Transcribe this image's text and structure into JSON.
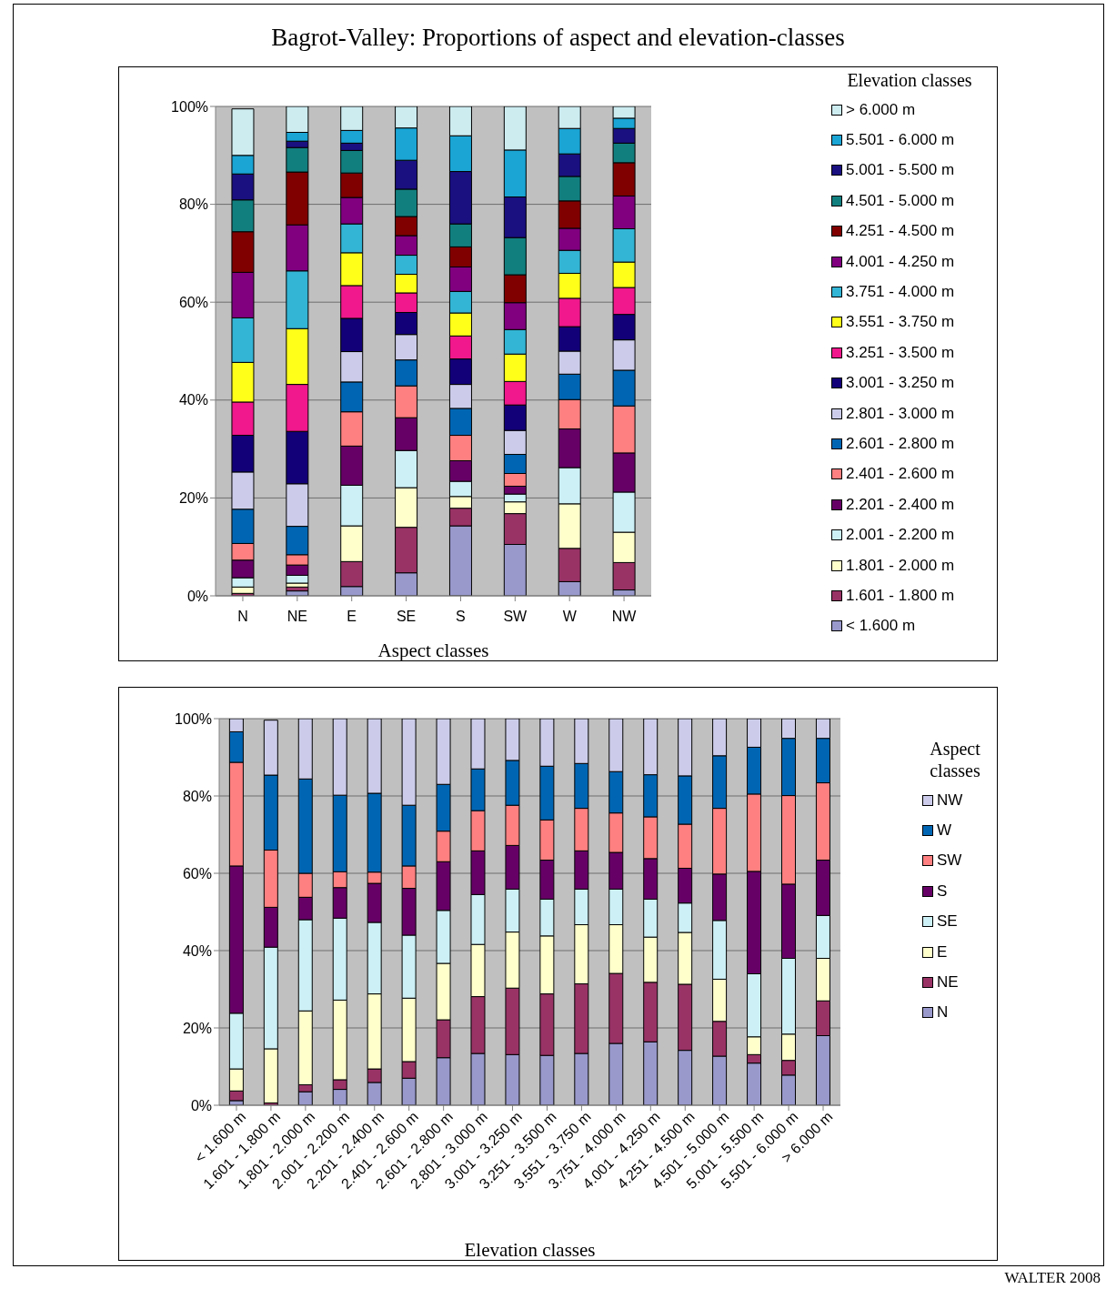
{
  "chart_data": [
    {
      "type": "bar",
      "title": "Bagrot-Valley: Proportions of aspect and elevation-classes",
      "xlabel": "Aspect classes",
      "legend_title": "Elevation classes",
      "categories": [
        "N",
        "NE",
        "E",
        "SE",
        "S",
        "SW",
        "W",
        "NW"
      ],
      "stacked": true,
      "grid": "y",
      "legend": "right",
      "ylim": [
        0,
        100
      ],
      "yticks": [
        {
          "value": 0,
          "label": "0%"
        },
        {
          "value": 20,
          "label": "20%"
        },
        {
          "value": 40,
          "label": "40%"
        },
        {
          "value": 60,
          "label": "60%"
        },
        {
          "value": 80,
          "label": "80%"
        },
        {
          "value": 100,
          "label": "100%"
        }
      ],
      "series": [
        {
          "name": "< 1.600 m",
          "color": "#9999cc",
          "values": [
            null,
            1.0,
            1.9,
            4.7,
            14.3,
            10.5,
            2.9,
            1.2
          ]
        },
        {
          "name": "1.601 - 1.800 m",
          "color": "#993366",
          "values": [
            0.5,
            0.8,
            5.1,
            9.3,
            3.6,
            6.3,
            6.8,
            5.6
          ]
        },
        {
          "name": "1.801 - 2.000 m",
          "color": "#ffffcc",
          "values": [
            1.3,
            0.8,
            7.3,
            8.1,
            2.4,
            2.4,
            9.1,
            6.2
          ]
        },
        {
          "name": "2.001 - 2.200 m",
          "color": "#ccf0f5",
          "values": [
            1.9,
            1.6,
            8.3,
            7.6,
            3.1,
            1.6,
            7.4,
            8.2
          ]
        },
        {
          "name": "2.201 - 2.400 m",
          "color": "#660066",
          "values": [
            3.6,
            2.1,
            8.0,
            6.7,
            4.2,
            1.6,
            7.9,
            8.0
          ]
        },
        {
          "name": "2.401 - 2.600 m",
          "color": "#ff8080",
          "values": [
            3.4,
            2.1,
            7.0,
            6.5,
            5.2,
            2.6,
            6.0,
            9.6
          ]
        },
        {
          "name": "2.601 - 2.800 m",
          "color": "#0066b3",
          "values": [
            7.0,
            5.8,
            6.1,
            5.3,
            5.5,
            3.9,
            5.2,
            7.3
          ]
        },
        {
          "name": "2.801 - 3.000 m",
          "color": "#ccccea",
          "values": [
            7.6,
            8.7,
            6.2,
            5.2,
            4.9,
            4.9,
            4.7,
            6.2
          ]
        },
        {
          "name": "3.001 - 3.250 m",
          "color": "#120078",
          "values": [
            7.5,
            10.7,
            6.8,
            4.5,
            5.2,
            5.2,
            5.0,
            5.2
          ]
        },
        {
          "name": "3.251 - 3.500 m",
          "color": "#f0188c",
          "values": [
            6.8,
            9.6,
            6.7,
            4.0,
            4.7,
            4.8,
            5.8,
            5.5
          ]
        },
        {
          "name": "3.551 - 3.750 m",
          "color": "#ffff1a",
          "values": [
            8.1,
            11.4,
            6.7,
            3.8,
            4.7,
            5.6,
            5.1,
            5.2
          ]
        },
        {
          "name": "3.751 - 4.000 m",
          "color": "#33b5d5",
          "values": [
            9.1,
            11.8,
            5.9,
            3.9,
            4.4,
            5.0,
            4.7,
            6.8
          ]
        },
        {
          "name": "4.001 - 4.250 m",
          "color": "#800080",
          "values": [
            9.3,
            9.4,
            5.4,
            4.0,
            5.0,
            5.5,
            4.5,
            6.7
          ]
        },
        {
          "name": "4.251 - 4.500 m",
          "color": "#800000",
          "values": [
            8.3,
            10.8,
            5.0,
            3.9,
            4.1,
            5.7,
            5.6,
            6.8
          ]
        },
        {
          "name": "4.501 - 5.000 m",
          "color": "#127f7f",
          "values": [
            6.5,
            5.0,
            4.6,
            5.6,
            4.7,
            7.6,
            5.0,
            4.0
          ]
        },
        {
          "name": "5.001 - 5.500 m",
          "color": "#1a1080",
          "values": [
            5.3,
            1.3,
            1.5,
            5.9,
            10.7,
            8.3,
            4.6,
            3.0
          ]
        },
        {
          "name": "5.501 - 6.000 m",
          "color": "#1aa5d5",
          "values": [
            3.8,
            1.8,
            2.6,
            6.6,
            7.3,
            9.6,
            5.2,
            2.1
          ]
        },
        {
          "name": "> 6.000 m",
          "color": "#ccecf0",
          "values": [
            9.5,
            5.3,
            4.9,
            4.4,
            6.0,
            8.9,
            4.5,
            2.4
          ]
        }
      ]
    },
    {
      "type": "bar",
      "xlabel": "Elevation classes",
      "legend_title": "Aspect classes",
      "categories": [
        "< 1.600 m",
        "1.601 - 1.800 m",
        "1.801 - 2.000 m",
        "2.001 - 2.200 m",
        "2.201 - 2.400 m",
        "2.401 - 2.600 m",
        "2.601 - 2.800 m",
        "2.801 - 3.000 m",
        "3.001 - 3.250 m",
        "3.251 - 3.500 m",
        "3.551 - 3.750 m",
        "3.751 - 4.000 m",
        "4.001 - 4.250 m",
        "4.251 - 4.500 m",
        "4.501 - 5.000 m",
        "5.001 - 5.500 m",
        "5.501 - 6.000 m",
        "> 6.000 m"
      ],
      "stacked": true,
      "grid": "y",
      "legend": "right",
      "ylim": [
        0,
        100
      ],
      "yticks": [
        {
          "value": 0,
          "label": "0%"
        },
        {
          "value": 20,
          "label": "20%"
        },
        {
          "value": 40,
          "label": "40%"
        },
        {
          "value": 60,
          "label": "60%"
        },
        {
          "value": 80,
          "label": "80%"
        },
        {
          "value": 100,
          "label": "100%"
        }
      ],
      "annotations": [
        "WALTER 2008"
      ],
      "series": [
        {
          "name": "N",
          "color": "#9999cc",
          "values": [
            1.2,
            null,
            3.5,
            4.1,
            5.9,
            7.0,
            12.3,
            13.4,
            13.1,
            12.9,
            13.4,
            16.0,
            16.4,
            14.2,
            12.7,
            10.9,
            7.8,
            18.0
          ]
        },
        {
          "name": "NE",
          "color": "#993366",
          "values": [
            2.5,
            0.6,
            1.8,
            2.5,
            3.5,
            4.3,
            9.8,
            14.7,
            17.2,
            15.9,
            18.0,
            18.1,
            15.4,
            17.1,
            9.0,
            2.2,
            3.8,
            9.0
          ]
        },
        {
          "name": "E",
          "color": "#ffffcc",
          "values": [
            5.7,
            14.0,
            19.1,
            20.6,
            19.4,
            16.4,
            14.6,
            13.5,
            14.5,
            15.0,
            15.3,
            12.6,
            11.7,
            13.4,
            10.9,
            4.6,
            6.8,
            11.0
          ]
        },
        {
          "name": "SE",
          "color": "#ccf0f5",
          "values": [
            14.4,
            26.3,
            23.6,
            21.2,
            18.5,
            16.3,
            13.7,
            12.9,
            11.1,
            9.5,
            9.2,
            9.2,
            9.8,
            7.6,
            15.2,
            16.3,
            19.6,
            11.1
          ]
        },
        {
          "name": "S",
          "color": "#660066",
          "values": [
            38.1,
            10.3,
            5.8,
            7.9,
            10.1,
            12.1,
            12.6,
            11.3,
            11.3,
            10.1,
            9.9,
            9.5,
            10.5,
            9.0,
            12.0,
            26.5,
            19.2,
            14.3
          ]
        },
        {
          "name": "SW",
          "color": "#ff8080",
          "values": [
            26.8,
            14.8,
            6.2,
            4.1,
            2.9,
            5.8,
            7.9,
            10.4,
            10.4,
            10.4,
            11.0,
            10.2,
            10.8,
            11.4,
            17.0,
            20.0,
            22.9,
            20.0
          ]
        },
        {
          "name": "W",
          "color": "#0066b3",
          "values": [
            7.9,
            19.4,
            24.4,
            19.8,
            20.4,
            15.7,
            12.1,
            10.8,
            11.6,
            13.9,
            11.6,
            10.7,
            10.9,
            12.5,
            13.6,
            12.1,
            14.8,
            11.5
          ]
        },
        {
          "name": "NW",
          "color": "#ccccea",
          "values": [
            3.4,
            14.2,
            15.6,
            19.8,
            19.3,
            22.4,
            17.0,
            13.0,
            10.8,
            12.3,
            11.6,
            13.7,
            14.5,
            14.8,
            9.6,
            7.4,
            5.1,
            5.1
          ]
        }
      ]
    }
  ]
}
